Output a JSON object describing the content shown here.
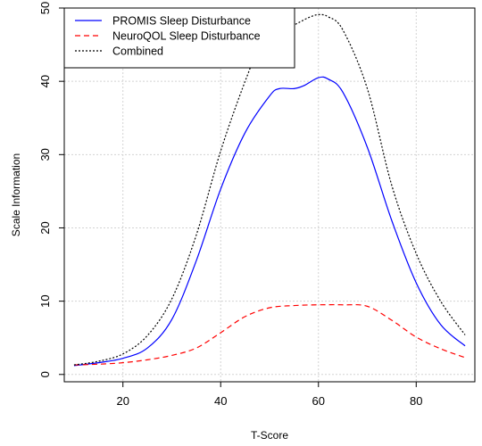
{
  "chart_data": {
    "type": "line",
    "title": "",
    "xlabel": "T-Score",
    "ylabel": "Scale Information",
    "xlim": [
      8,
      92
    ],
    "ylim": [
      -1,
      50
    ],
    "xticks": [
      20,
      40,
      60,
      80
    ],
    "yticks": [
      0,
      10,
      20,
      30,
      40,
      50
    ],
    "grid": true,
    "legend_position": "top-left",
    "series": [
      {
        "name": "PROMIS Sleep Disturbance",
        "color": "#0000ff",
        "dash": "solid",
        "x": [
          10,
          15,
          20,
          25,
          30,
          35,
          40,
          45,
          50,
          52,
          55,
          57,
          60,
          62,
          65,
          70,
          75,
          80,
          85,
          90
        ],
        "y": [
          1.2,
          1.6,
          2.2,
          3.6,
          7.5,
          15.5,
          25.3,
          33.0,
          38.0,
          39.0,
          39.0,
          39.4,
          40.5,
          40.3,
          38.5,
          31.0,
          21.0,
          12.5,
          6.8,
          3.9
        ]
      },
      {
        "name": "NeuroQOL Sleep Disturbance",
        "color": "#ff0000",
        "dash": "dashed",
        "x": [
          10,
          15,
          20,
          25,
          30,
          35,
          40,
          45,
          50,
          55,
          60,
          65,
          70,
          75,
          80,
          85,
          90
        ],
        "y": [
          1.3,
          1.4,
          1.6,
          2.0,
          2.6,
          3.6,
          5.7,
          7.9,
          9.1,
          9.4,
          9.5,
          9.5,
          9.3,
          7.4,
          5.1,
          3.5,
          2.3
        ]
      },
      {
        "name": "Combined",
        "color": "#000000",
        "dash": "dotted",
        "x": [
          10,
          15,
          20,
          25,
          30,
          35,
          40,
          45,
          48,
          52,
          55,
          58,
          60,
          62,
          65,
          70,
          75,
          80,
          85,
          90
        ],
        "y": [
          1.3,
          1.8,
          2.8,
          5.3,
          10.3,
          19.0,
          30.5,
          40.0,
          44.5,
          47.0,
          47.7,
          48.7,
          49.1,
          48.8,
          47.0,
          39.0,
          25.8,
          16.5,
          10.0,
          5.4
        ]
      }
    ]
  }
}
